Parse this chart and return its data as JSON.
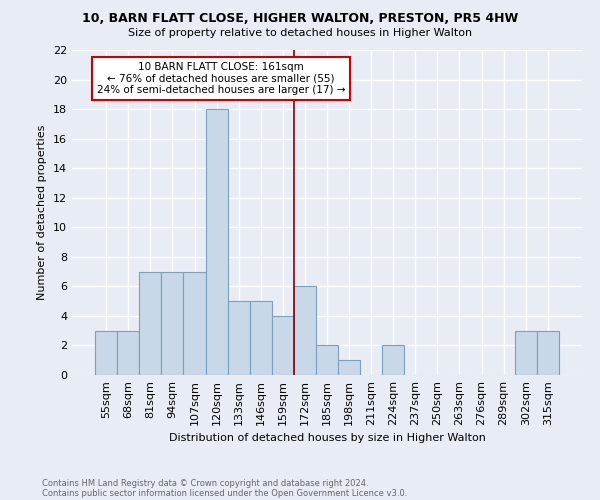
{
  "title1": "10, BARN FLATT CLOSE, HIGHER WALTON, PRESTON, PR5 4HW",
  "title2": "Size of property relative to detached houses in Higher Walton",
  "xlabel": "Distribution of detached houses by size in Higher Walton",
  "ylabel": "Number of detached properties",
  "footnote1": "Contains HM Land Registry data © Crown copyright and database right 2024.",
  "footnote2": "Contains public sector information licensed under the Open Government Licence v3.0.",
  "categories": [
    "55sqm",
    "68sqm",
    "81sqm",
    "94sqm",
    "107sqm",
    "120sqm",
    "133sqm",
    "146sqm",
    "159sqm",
    "172sqm",
    "185sqm",
    "198sqm",
    "211sqm",
    "224sqm",
    "237sqm",
    "250sqm",
    "263sqm",
    "276sqm",
    "289sqm",
    "302sqm",
    "315sqm"
  ],
  "values": [
    3,
    3,
    7,
    7,
    7,
    18,
    5,
    5,
    4,
    6,
    2,
    1,
    0,
    2,
    0,
    0,
    0,
    0,
    0,
    3,
    3
  ],
  "bar_color": "#c8d8e8",
  "bar_edge_color": "#7aa0be",
  "reference_line_index": 8.5,
  "reference_line_color": "#8b0000",
  "annotation_title": "10 BARN FLATT CLOSE: 161sqm",
  "annotation_line1": "← 76% of detached houses are smaller (55)",
  "annotation_line2": "24% of semi-detached houses are larger (17) →",
  "annotation_box_color": "#ffffff",
  "annotation_box_edge": "#cc0000",
  "ylim": [
    0,
    22
  ],
  "yticks": [
    0,
    2,
    4,
    6,
    8,
    10,
    12,
    14,
    16,
    18,
    20,
    22
  ],
  "bg_color": "#e8edf5",
  "grid_color": "#ffffff"
}
